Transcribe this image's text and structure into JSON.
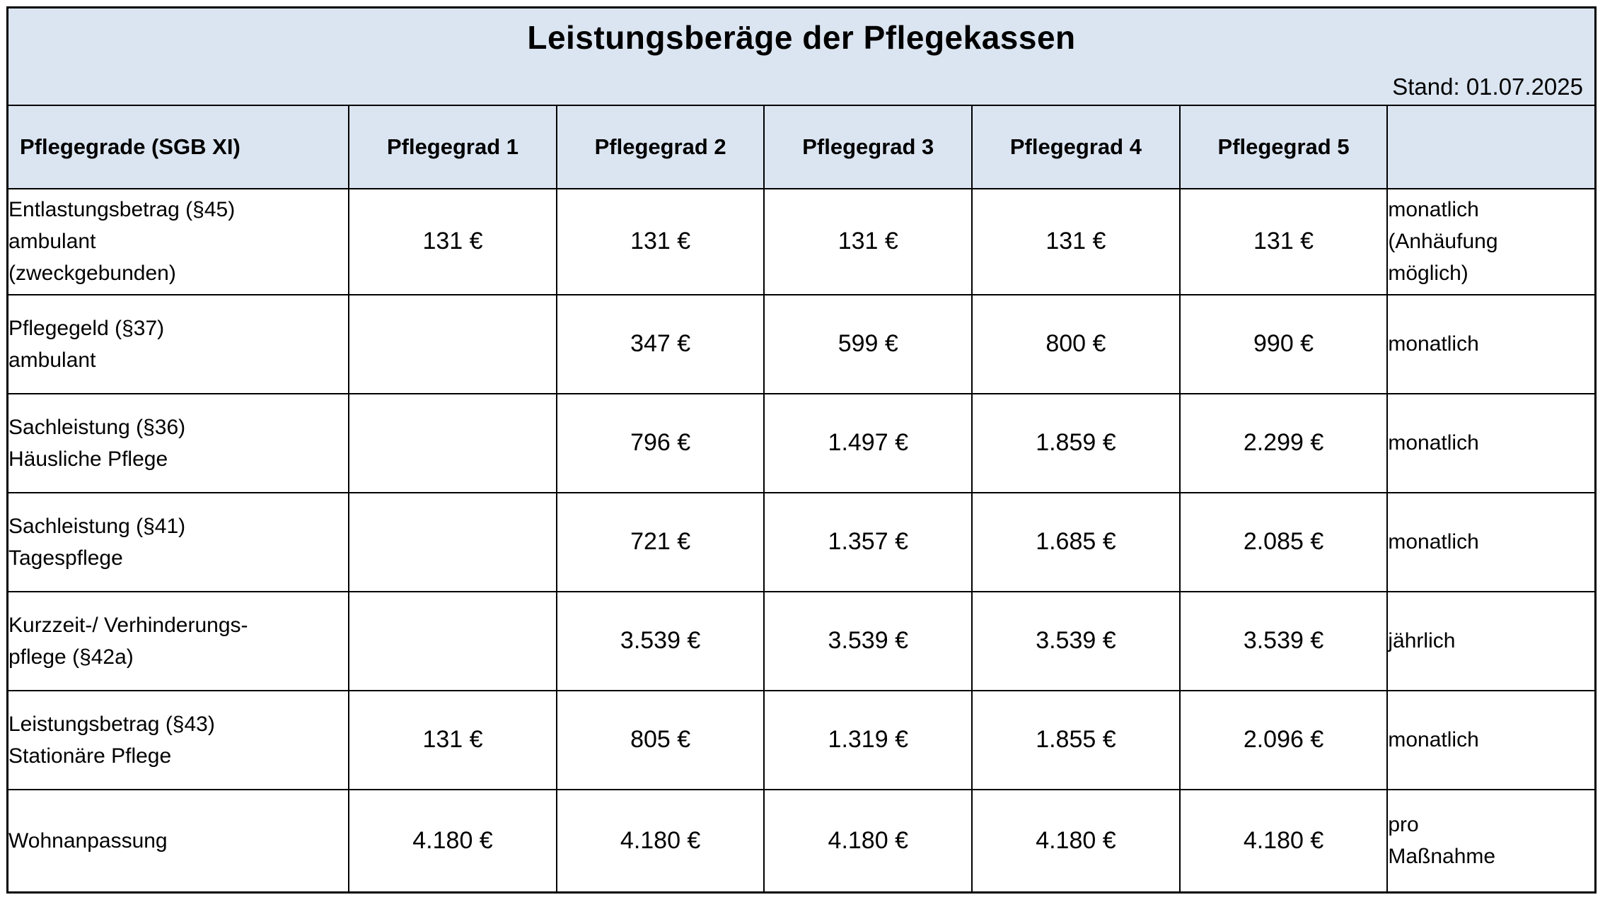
{
  "header": {
    "title": "Leistungsberäge der Pflegekassen",
    "stand": "Stand: 01.07.2025"
  },
  "columns": [
    "Pflegegrade (SGB XI)",
    "Pflegegrad 1",
    "Pflegegrad 2",
    "Pflegegrad 3",
    "Pflegegrad 4",
    "Pflegegrad 5",
    ""
  ],
  "rows": [
    {
      "label": [
        "Entlastungsbetrag (§45)",
        "ambulant",
        "(zweckgebunden)"
      ],
      "values": [
        "131 €",
        "131 €",
        "131 €",
        "131 €",
        "131 €"
      ],
      "frequency": [
        "monatlich",
        "(Anhäufung",
        "möglich)"
      ]
    },
    {
      "label": [
        "Pflegegeld (§37)",
        "ambulant"
      ],
      "values": [
        "",
        "347 €",
        "599 €",
        "800 €",
        "990 €"
      ],
      "frequency": [
        "monatlich"
      ]
    },
    {
      "label": [
        "Sachleistung (§36)",
        "Häusliche Pflege"
      ],
      "values": [
        "",
        "796 €",
        "1.497 €",
        "1.859 €",
        "2.299 €"
      ],
      "frequency": [
        "monatlich"
      ]
    },
    {
      "label": [
        "Sachleistung (§41)",
        "Tagespflege"
      ],
      "values": [
        "",
        "721 €",
        "1.357 €",
        "1.685 €",
        "2.085 €"
      ],
      "frequency": [
        "monatlich"
      ]
    },
    {
      "label": [
        "Kurzzeit-/ Verhinderungs-",
        "pflege (§42a)"
      ],
      "values": [
        "",
        "3.539 €",
        "3.539 €",
        "3.539 €",
        "3.539 €"
      ],
      "frequency": [
        "jährlich"
      ]
    },
    {
      "label": [
        "Leistungsbetrag (§43)",
        "Stationäre Pflege"
      ],
      "values": [
        "131 €",
        "805 €",
        "1.319 €",
        "1.855 €",
        "2.096 €"
      ],
      "frequency": [
        "monatlich"
      ]
    },
    {
      "label": [
        "Wohnanpassung"
      ],
      "values": [
        "4.180 €",
        "4.180 €",
        "4.180 €",
        "4.180 €",
        "4.180 €"
      ],
      "frequency": [
        "pro",
        "Maßnahme"
      ]
    }
  ],
  "colors": {
    "header_bg": "#dbe5f1",
    "border": "#000000"
  }
}
